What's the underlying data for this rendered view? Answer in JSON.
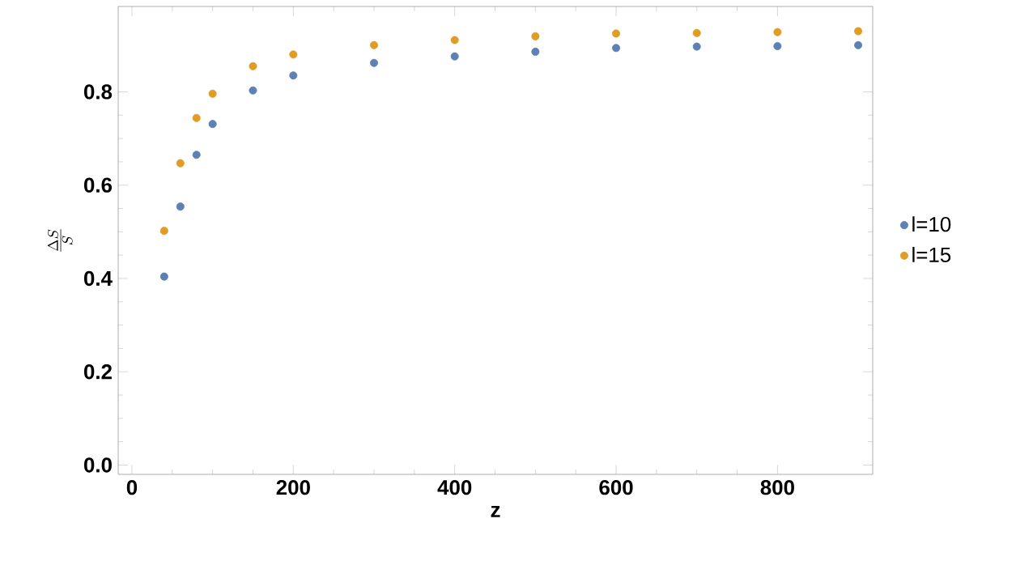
{
  "chart_data": {
    "type": "scatter",
    "xlabel": "z",
    "ylabel": "\\frac{\\Delta S}{S}",
    "x": [
      40,
      60,
      80,
      100,
      150,
      200,
      300,
      400,
      500,
      600,
      700,
      800,
      900
    ],
    "series": [
      {
        "name": "l=10",
        "color": "#5e81b5",
        "values": [
          0.404,
          0.554,
          0.665,
          0.731,
          0.803,
          0.835,
          0.862,
          0.876,
          0.886,
          0.894,
          0.897,
          0.898,
          0.9
        ]
      },
      {
        "name": "l=15",
        "color": "#e19c24",
        "values": [
          0.502,
          0.647,
          0.744,
          0.796,
          0.855,
          0.88,
          0.9,
          0.911,
          0.919,
          0.925,
          0.926,
          0.928,
          0.93
        ]
      }
    ],
    "xlim": [
      -17,
      918
    ],
    "ylim": [
      -0.02,
      0.983
    ],
    "xticks": [
      0,
      200,
      400,
      600,
      800
    ],
    "yticks": [
      {
        "value": 0,
        "label": "0.0"
      },
      0.2,
      0.4,
      0.6,
      0.8
    ],
    "marker": "circle",
    "legend": "right",
    "grid": false
  }
}
